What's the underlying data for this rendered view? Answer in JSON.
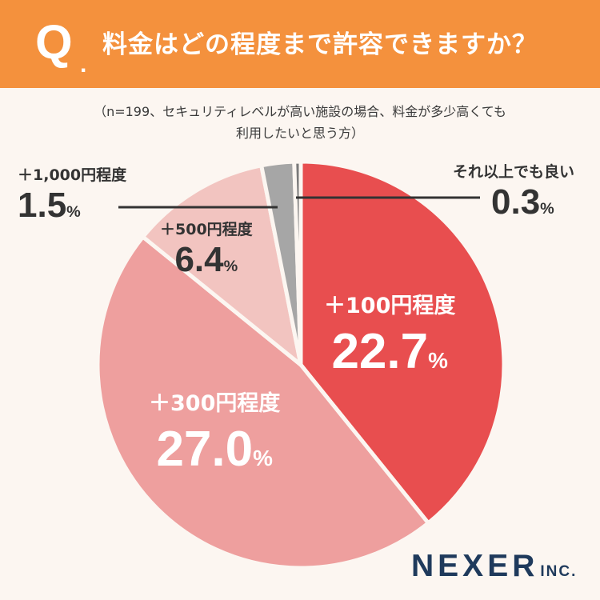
{
  "header": {
    "q_letter": "Q",
    "q_dot": ".",
    "question": "料金はどの程度まで許容できますか？",
    "bg_color": "#f4913d"
  },
  "note": {
    "line1": "（n=199、セキュリティレベルが高い施設の場合、料金が多少高くても",
    "line2": "利用したいと思う方）"
  },
  "chart_data": {
    "type": "pie",
    "start_angle_deg": 0,
    "direction": "clockwise",
    "slices": [
      {
        "label": "＋100円程度",
        "value": 22.7,
        "display": "22.7",
        "unit": "%",
        "color": "#e84e4f"
      },
      {
        "label": "＋300円程度",
        "value": 27.0,
        "display": "27.0",
        "unit": "%",
        "color": "#ee9f9e"
      },
      {
        "label": "＋500円程度",
        "value": 6.4,
        "display": "6.4",
        "unit": "%",
        "color": "#f2c4c0"
      },
      {
        "label": "＋1,000円程度",
        "value": 1.5,
        "display": "1.5",
        "unit": "%",
        "color": "#a6a6a6"
      },
      {
        "label": "それ以上でも良い",
        "value": 0.3,
        "display": "0.3",
        "unit": "%",
        "color": "#7a7a7a"
      }
    ]
  },
  "logo": {
    "main": "NEXER",
    "sub": "INC."
  }
}
